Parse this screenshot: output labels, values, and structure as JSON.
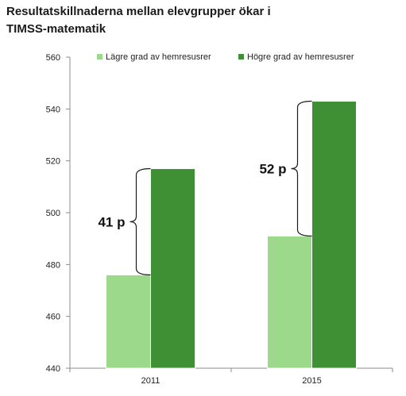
{
  "chart_data": {
    "type": "bar",
    "title_lines": [
      "Resultatskillnaderna mellan elevgrupper ökar i",
      "TIMSS-matematik"
    ],
    "categories": [
      "2011",
      "2015"
    ],
    "series": [
      {
        "name": "Lägre grad av hemresusrer",
        "values": [
          476,
          491
        ],
        "color": "#9dd98a"
      },
      {
        "name": "Högre grad av hemresusrer",
        "values": [
          517,
          543
        ],
        "color": "#3f8f35"
      }
    ],
    "ylim": [
      440,
      560
    ],
    "yticks": [
      440,
      460,
      480,
      500,
      520,
      540,
      560
    ],
    "grid": false,
    "legend": "top",
    "annotations": [
      {
        "category": "2011",
        "text": "41 p"
      },
      {
        "category": "2015",
        "text": "52 p"
      }
    ]
  }
}
